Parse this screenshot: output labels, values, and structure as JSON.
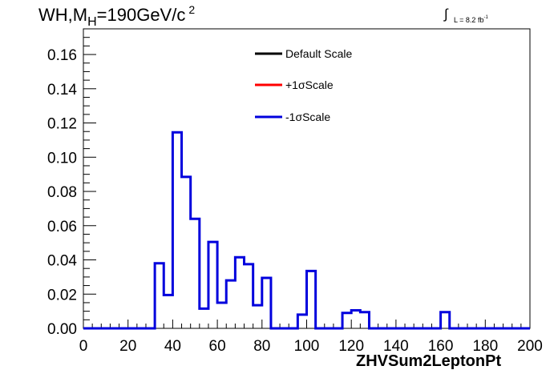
{
  "header": {
    "title_main": "WH,M",
    "title_sub": "H",
    "title_rest": "=190GeV/c",
    "title_sup": "2",
    "lumi_integral": "∫",
    "lumi_text": "L = 8.2 fb",
    "lumi_sup": "-1"
  },
  "colors": {
    "default": "#000000",
    "plus": "#ff0000",
    "minus": "#0000dd"
  },
  "chart_data": {
    "type": "histogram",
    "title": "WH,MH=190GeV/c2",
    "xlabel": "ZHVSum2LeptonPt",
    "ylabel": "",
    "xlim": [
      0,
      200
    ],
    "ylim": [
      0,
      0.175
    ],
    "x_ticks": [
      "0",
      "20",
      "40",
      "60",
      "80",
      "100",
      "120",
      "140",
      "160",
      "180",
      "200"
    ],
    "y_ticks": [
      "0.00",
      "0.02",
      "0.04",
      "0.06",
      "0.08",
      "0.10",
      "0.12",
      "0.14",
      "0.16"
    ],
    "bin_width": 4,
    "bin_edges_start": 0,
    "legend": {
      "placement": "top-center",
      "entries": [
        "Default Scale",
        "+1σScale",
        "-1σScale"
      ]
    },
    "series": [
      {
        "name": "-1σScale",
        "values": [
          0,
          0,
          0,
          0,
          0,
          0,
          0,
          0,
          0.038,
          0.0195,
          0.1145,
          0.0885,
          0.064,
          0.0115,
          0.0505,
          0.015,
          0.028,
          0.0415,
          0.0375,
          0.0135,
          0.0295,
          0,
          0,
          0,
          0.008,
          0.0335,
          0,
          0,
          0,
          0.009,
          0.0105,
          0.0095,
          0,
          0,
          0,
          0,
          0,
          0,
          0,
          0,
          0.0095,
          0,
          0,
          0,
          0,
          0,
          0,
          0,
          0,
          0
        ]
      }
    ],
    "grid": false
  }
}
